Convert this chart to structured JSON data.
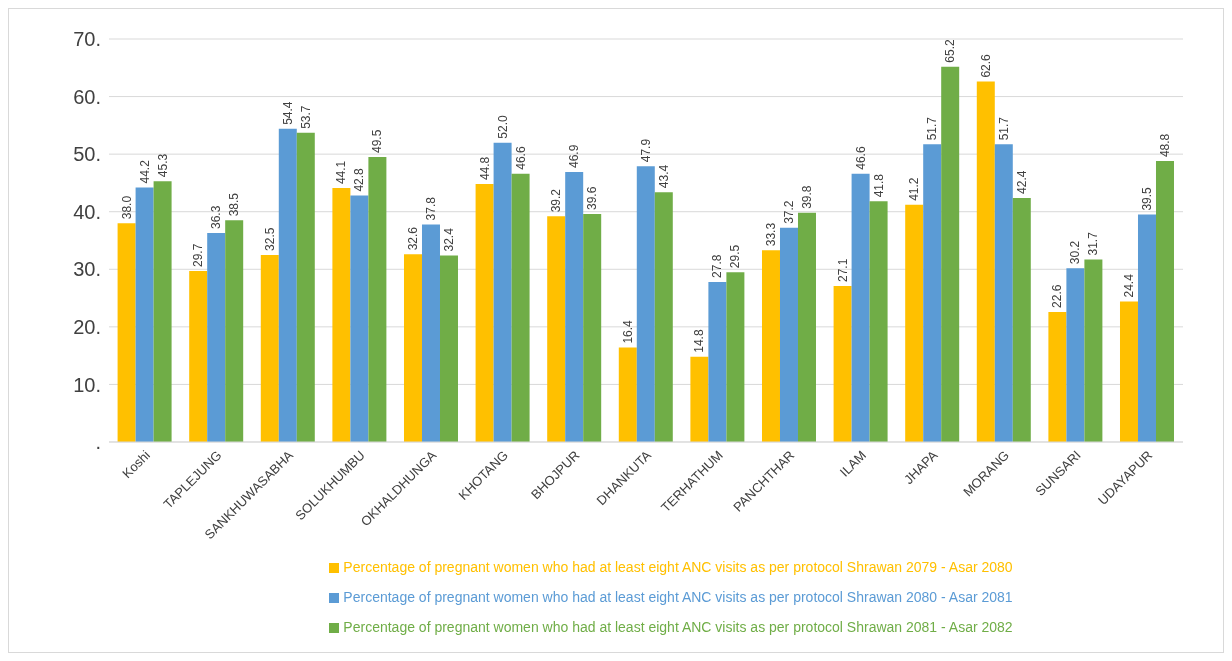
{
  "chart_data": {
    "type": "bar",
    "categories": [
      "Koshi",
      "TAPLEJUNG",
      "SANKHUWASABHA",
      "SOLUKHUMBU",
      "OKHALDHUNGA",
      "KHOTANG",
      "BHOJPUR",
      "DHANKUTA",
      "TERHATHUM",
      "PANCHTHAR",
      "ILAM",
      "JHAPA",
      "MORANG",
      "SUNSARI",
      "UDAYAPUR"
    ],
    "series": [
      {
        "name": "Percentage of pregnant women who had at least eight ANC visits as per protocol Shrawan 2079 - Asar 2080",
        "color": "#ffc000",
        "values": [
          38.0,
          29.7,
          32.5,
          44.1,
          32.6,
          44.8,
          39.2,
          16.4,
          14.8,
          33.3,
          27.1,
          41.2,
          62.6,
          22.6,
          24.4
        ],
        "value_labels": [
          "38.0",
          "29.7",
          "32.5",
          "44.1",
          "32.6",
          "44.8",
          "39.2",
          "16.4",
          "14.8",
          "33.3",
          "27.1",
          "41.2",
          "62.6",
          "22.6",
          "24.4"
        ]
      },
      {
        "name": "Percentage of pregnant women who had at least eight ANC visits as per protocol Shrawan 2080 - Asar 2081",
        "color": "#5b9bd5",
        "values": [
          44.2,
          36.3,
          54.4,
          42.8,
          37.8,
          52.0,
          46.9,
          47.9,
          27.8,
          37.2,
          46.6,
          51.7,
          51.7,
          30.2,
          39.5
        ],
        "value_labels": [
          "44.2",
          "36.3",
          "54.4",
          "42.8",
          "37.8",
          "52.0",
          "46.9",
          "47.9",
          "27.8",
          "37.2",
          "46.6",
          "51.7",
          "51.7",
          "30.2",
          "39.5"
        ]
      },
      {
        "name": "Percentage of pregnant women who had at least eight ANC visits as per protocol Shrawan 2081 - Asar 2082",
        "color": "#70ad47",
        "values": [
          45.3,
          38.5,
          53.7,
          49.5,
          32.4,
          46.6,
          39.6,
          43.4,
          29.5,
          39.8,
          41.8,
          65.2,
          42.4,
          31.7,
          48.8
        ],
        "value_labels": [
          "45.3",
          "38.5",
          "53.7",
          "49.5",
          "32.4",
          "46.6",
          "39.6",
          "43.4",
          "29.5",
          "39.8",
          "41.8",
          "65.2",
          "42.4",
          "31.7",
          "48.8"
        ]
      }
    ],
    "ylim": [
      0,
      70
    ],
    "yticks": [
      {
        "value": 0,
        "label": "."
      },
      {
        "value": 10,
        "label": "10."
      },
      {
        "value": 20,
        "label": "20."
      },
      {
        "value": 30,
        "label": "30."
      },
      {
        "value": 40,
        "label": "40."
      },
      {
        "value": 50,
        "label": "50."
      },
      {
        "value": 60,
        "label": "60."
      },
      {
        "value": 70,
        "label": "70."
      }
    ],
    "grid": "y",
    "legend": "bottom"
  }
}
